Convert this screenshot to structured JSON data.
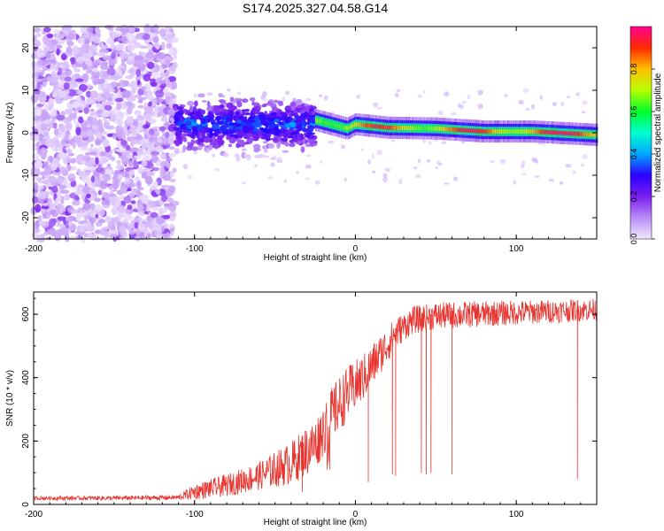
{
  "title": "S174.2025.327.04.58.G14",
  "colors": {
    "snr_line": "#e8342f",
    "axis": "#000000",
    "background": "#ffffff"
  },
  "chart_data": [
    {
      "type": "heatmap",
      "name": "spectrogram",
      "xlabel": "Height of straight line (km)",
      "ylabel": "Frequency (Hz)",
      "xlim": [
        -200,
        150
      ],
      "ylim": [
        -25,
        25
      ],
      "xticks": [
        -200,
        -100,
        0,
        100
      ],
      "yticks": [
        -20,
        -10,
        0,
        10,
        20
      ],
      "colorbar": {
        "label": "Normalized spectral amplitude",
        "range": [
          0,
          1
        ],
        "ticks": [
          0.0,
          0.2,
          0.4,
          0.6,
          0.8
        ],
        "colormap": [
          "#f2eaff",
          "#b98af5",
          "#7a1ff0",
          "#2a00ff",
          "#00a8ff",
          "#00ffd0",
          "#00ff2a",
          "#b8ff00",
          "#ffbf00",
          "#ff2a00",
          "#ff0090"
        ]
      },
      "regions": [
        {
          "x_range": [
            -200,
            -112
          ],
          "freq_range": [
            -25,
            25
          ],
          "amplitude": [
            0.0,
            0.15
          ],
          "description_ref": "noise"
        },
        {
          "x_range": [
            -112,
            -25
          ],
          "freq_center": 2,
          "freq_spread": 5,
          "amplitude": [
            0.1,
            0.35
          ]
        },
        {
          "x_range": [
            -25,
            150
          ],
          "freq_track": [
            [
              -25,
              3
            ],
            [
              -5,
              1
            ],
            [
              0,
              2
            ],
            [
              20,
              1.2
            ],
            [
              50,
              1
            ],
            [
              80,
              0.3
            ],
            [
              110,
              0.3
            ],
            [
              150,
              -0.5
            ]
          ],
          "amplitude": [
            0.3,
            0.95
          ]
        }
      ]
    },
    {
      "type": "line",
      "name": "snr",
      "xlabel": "Height of straight line (km)",
      "ylabel": "SNR (10 * v/v)",
      "xlim": [
        -200,
        150
      ],
      "ylim": [
        0,
        670
      ],
      "xticks": [
        -200,
        -100,
        0,
        100
      ],
      "yticks": [
        0,
        200,
        400,
        600
      ],
      "profile": [
        [
          -200,
          20
        ],
        [
          -150,
          20
        ],
        [
          -110,
          22
        ],
        [
          -100,
          40
        ],
        [
          -80,
          60
        ],
        [
          -60,
          90
        ],
        [
          -40,
          130
        ],
        [
          -25,
          190
        ],
        [
          -15,
          280
        ],
        [
          -5,
          350
        ],
        [
          5,
          400
        ],
        [
          15,
          470
        ],
        [
          25,
          540
        ],
        [
          35,
          580
        ],
        [
          50,
          595
        ],
        [
          75,
          600
        ],
        [
          100,
          605
        ],
        [
          125,
          610
        ],
        [
          150,
          615
        ]
      ],
      "noise_amplitude": [
        [
          -200,
          6
        ],
        [
          -110,
          8
        ],
        [
          -100,
          25
        ],
        [
          -60,
          45
        ],
        [
          -30,
          80
        ],
        [
          -10,
          90
        ],
        [
          10,
          70
        ],
        [
          30,
          45
        ],
        [
          150,
          35
        ]
      ],
      "dropouts": [
        {
          "x": -33,
          "value": 40
        },
        {
          "x": -16,
          "value": 110
        },
        {
          "x": 8,
          "value": 70
        },
        {
          "x": 23,
          "value": 95
        },
        {
          "x": 25,
          "value": 90
        },
        {
          "x": 41,
          "value": 100
        },
        {
          "x": 44,
          "value": 95
        },
        {
          "x": 47,
          "value": 100
        },
        {
          "x": 60,
          "value": 95
        },
        {
          "x": 138,
          "value": 80
        }
      ]
    }
  ]
}
